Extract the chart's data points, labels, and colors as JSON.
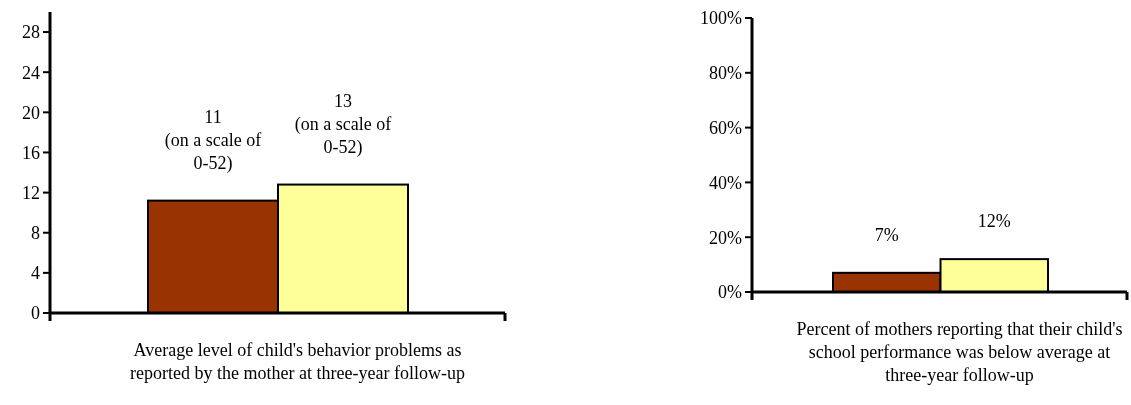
{
  "chart_data": [
    {
      "type": "bar",
      "categories": [
        null,
        null
      ],
      "values": [
        11.2,
        12.8
      ],
      "colors": [
        "#993300",
        "#ffff99"
      ],
      "value_labels": [
        "11 (on a scale of 0-52)",
        "13 (on a scale of 0-52)"
      ],
      "ylim": [
        0,
        30
      ],
      "yticks": [
        0,
        4,
        8,
        12,
        16,
        20,
        24,
        28
      ],
      "xlabel": "Average level of child's behavior problems as reported by the mother at three-year follow-up"
    },
    {
      "type": "bar",
      "categories": [
        null,
        null
      ],
      "values": [
        7,
        12
      ],
      "colors": [
        "#993300",
        "#ffff99"
      ],
      "value_labels": [
        "7%",
        "12%"
      ],
      "ylim": [
        0,
        100
      ],
      "yticks": [
        {
          "value": 0,
          "label": "0%"
        },
        {
          "value": 20,
          "label": "20%"
        },
        {
          "value": 40,
          "label": "40%"
        },
        {
          "value": 60,
          "label": "60%"
        },
        {
          "value": 80,
          "label": "80%"
        },
        {
          "value": 100,
          "label": "100%"
        }
      ],
      "xlabel": "Percent of mothers reporting that their child's school performance was below average at three-year follow-up"
    }
  ]
}
